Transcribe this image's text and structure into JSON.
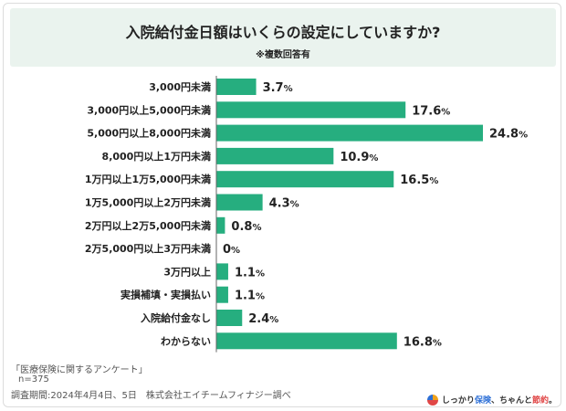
{
  "header": {
    "title": "入院給付金日額はいくらの設定にしていますか?",
    "subtitle": "※複数回答有"
  },
  "chart_data": {
    "type": "bar",
    "orientation": "horizontal",
    "value_suffix": "%",
    "bar_color": "#26ae7f",
    "categories": [
      "3,000円未満",
      "3,000円以上5,000円未満",
      "5,000円以上8,000円未満",
      "8,000円以上1万円未満",
      "1万円以上1万5,000円未満",
      "1万5,000円以上2万円未満",
      "2万円以上2万5,000円未満",
      "2万5,000円以上3万円未満",
      "3万円以上",
      "実損補填・実損払い",
      "入院給付金なし",
      "わからない"
    ],
    "values": [
      3.7,
      17.6,
      24.8,
      10.9,
      16.5,
      4.3,
      0.8,
      0,
      1.1,
      1.1,
      2.4,
      16.8
    ],
    "value_labels": [
      "3.7",
      "17.6",
      "24.8",
      "10.9",
      "16.5",
      "4.3",
      "0.8",
      "0",
      "1.1",
      "1.1",
      "2.4",
      "16.8"
    ],
    "title": "入院給付金日額はいくらの設定にしていますか?",
    "xlabel": "",
    "ylabel": "",
    "grid": false
  },
  "footer": {
    "source": "「医療保険に関するアンケート」",
    "sample": "n=375",
    "period": "調査期間:2024年4月4日、5日　株式会社エイチームフィナジー調べ"
  },
  "brand": {
    "part1": "しっかり",
    "part2": "保険",
    "part3": "、ちゃんと",
    "part4": "節約",
    "part5": "。"
  }
}
